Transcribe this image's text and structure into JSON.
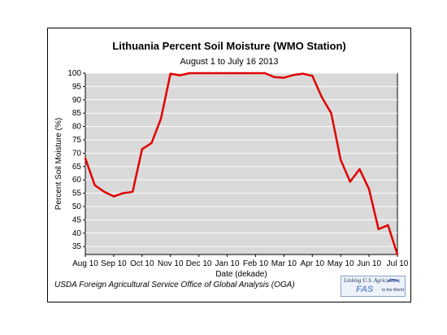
{
  "chart_data": {
    "type": "line",
    "title": "Lithuania Percent Soil Moisture (WMO Station)",
    "subtitle": "August 1 to July 16  2013",
    "xlabel": "Date (dekade)",
    "ylabel": "Percent Soil Moisture (%)",
    "ylim": [
      32,
      100
    ],
    "yticks": [
      35,
      40,
      45,
      50,
      55,
      60,
      65,
      70,
      75,
      80,
      85,
      90,
      95,
      100
    ],
    "xtick_labels": [
      "Aug 10",
      "Sep 10",
      "Oct 10",
      "Nov 10",
      "Dec 10",
      "Jan 10",
      "Feb 10",
      "Mar 10",
      "Apr 10",
      "May 10",
      "Jun 10",
      "Jul 10"
    ],
    "xtick_index": [
      0,
      3,
      6,
      9,
      12,
      15,
      18,
      21,
      24,
      27,
      30,
      33
    ],
    "grid": true,
    "line_color": "#e00000",
    "plot_background": "#d9d9d9",
    "values": [
      68,
      58,
      55.5,
      53.8,
      55,
      55.5,
      71.5,
      73.8,
      83,
      99.8,
      99.2,
      100,
      100,
      100,
      100,
      100,
      100,
      100,
      100,
      100,
      98.5,
      98.3,
      99.3,
      99.8,
      99,
      91,
      85,
      67.5,
      59.3,
      64,
      56.5,
      41.5,
      43,
      32
    ]
  },
  "footer": "USDA Foreign Agricultural Service Office of Global Analysis (OGA)",
  "logo": {
    "line1": "Linking U.S. Agriculture",
    "line2": "FAS",
    "line3": "to the World"
  }
}
